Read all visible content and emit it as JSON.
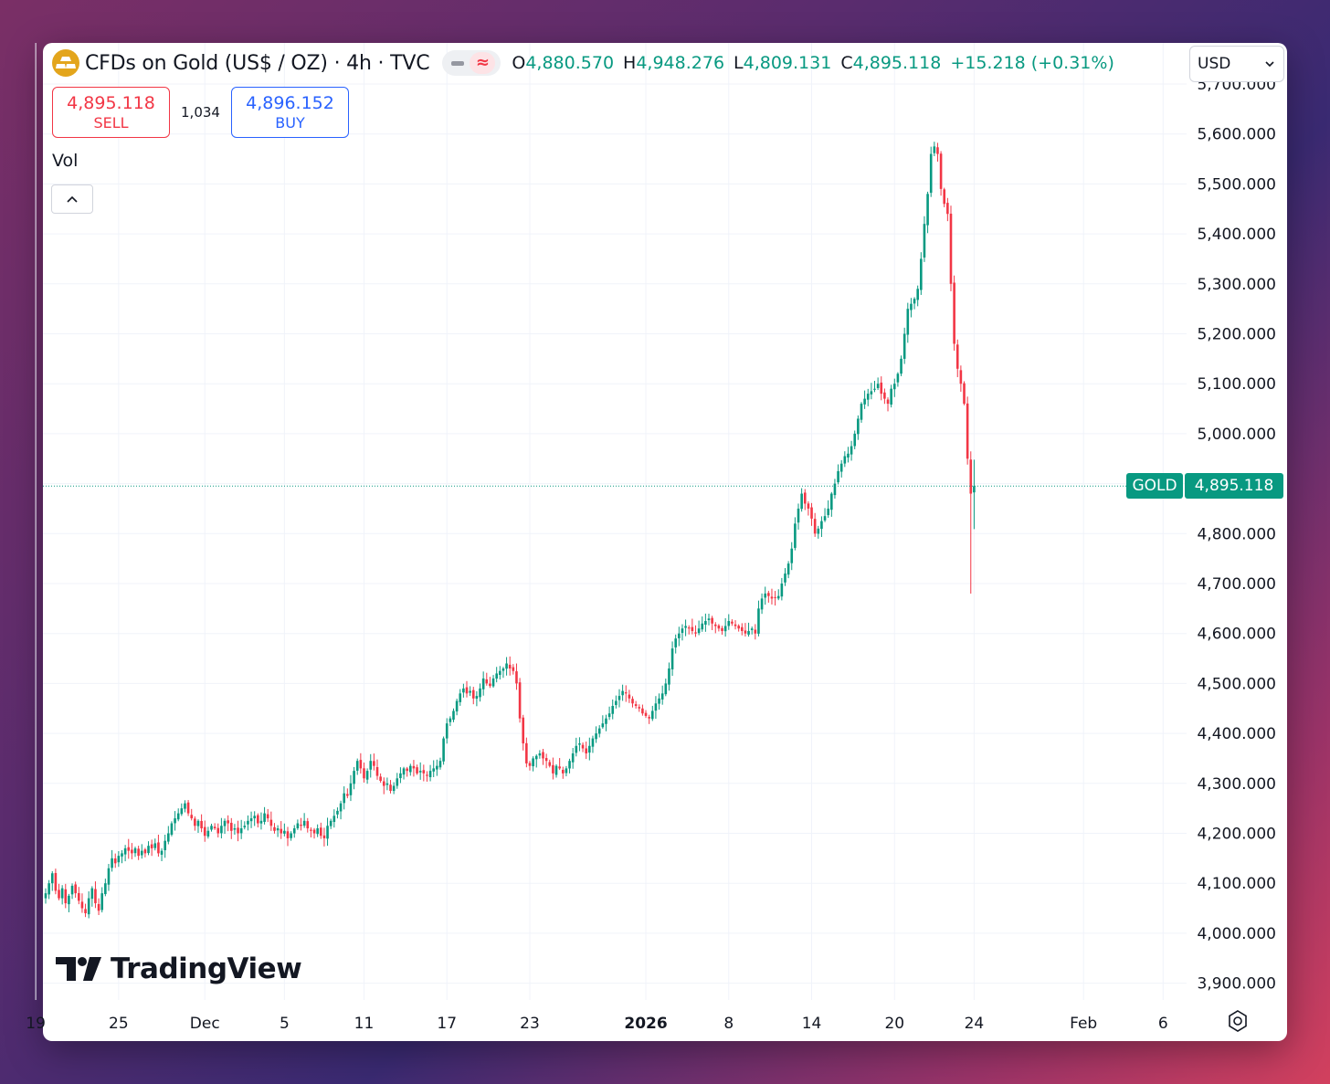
{
  "header": {
    "symbol_title": "CFDs on Gold (US$ / OZ) · 4h · TVC",
    "ohlc": {
      "open_label": "O",
      "open": "4,880.570",
      "high_label": "H",
      "high": "4,948.276",
      "low_label": "L",
      "low": "4,809.131",
      "close_label": "C",
      "close": "4,895.118",
      "change": "+15.218 (+0.31%)"
    },
    "currency": "USD"
  },
  "trade": {
    "sell_price": "4,895.118",
    "sell_label": "SELL",
    "spread": "1,034",
    "buy_price": "4,896.152",
    "buy_label": "BUY"
  },
  "indicator": {
    "vol_label": "Vol"
  },
  "watermark": {
    "text": "TradingView"
  },
  "last_price_tag": {
    "name": "GOLD",
    "price": "4,895.118"
  },
  "colors": {
    "up": "#089981",
    "down": "#f23645",
    "grid": "#f0f3fa",
    "text": "#131722",
    "gold_icon": "#e3a51c"
  },
  "chart_data": {
    "type": "candlestick",
    "symbol": "GOLD",
    "timeframe": "4h",
    "ylim": [
      3850,
      5700
    ],
    "y_ticks": [
      3900,
      4000,
      4100,
      4200,
      4300,
      4400,
      4500,
      4600,
      4700,
      4800,
      4900,
      5000,
      5100,
      5200,
      5300,
      5400,
      5500,
      5600,
      5700
    ],
    "y_tick_labels": [
      "3,900.000",
      "4,000.000",
      "4,100.000",
      "4,200.000",
      "4,300.000",
      "4,400.000",
      "4,500.000",
      "4,600.000",
      "4,700.000",
      "4,800.000",
      "",
      "5,000.000",
      "5,100.000",
      "5,200.000",
      "5,300.000",
      "5,400.000",
      "5,500.000",
      "5,600.000",
      "5,700.000"
    ],
    "x_ticks": [
      {
        "label": "19",
        "bar": -3
      },
      {
        "label": "25",
        "bar": 22
      },
      {
        "label": "Dec",
        "bar": 48
      },
      {
        "label": "5",
        "bar": 72
      },
      {
        "label": "11",
        "bar": 96
      },
      {
        "label": "17",
        "bar": 121
      },
      {
        "label": "23",
        "bar": 146
      },
      {
        "label": "2026",
        "bar": 181,
        "bold": true
      },
      {
        "label": "8",
        "bar": 206
      },
      {
        "label": "14",
        "bar": 231
      },
      {
        "label": "20",
        "bar": 256
      },
      {
        "label": "24",
        "bar": 280
      },
      {
        "label": "Feb",
        "bar": 313
      },
      {
        "label": "6",
        "bar": 337
      }
    ],
    "last_price": 4895.118,
    "close_series": [
      4080,
      4100,
      4120,
      4085,
      4070,
      4090,
      4060,
      4075,
      4095,
      4080,
      4065,
      4050,
      4040,
      4070,
      4090,
      4060,
      4045,
      4080,
      4100,
      4130,
      4150,
      4140,
      4155,
      4160,
      4170,
      4165,
      4160,
      4170,
      4155,
      4165,
      4160,
      4175,
      4170,
      4180,
      4160,
      4165,
      4185,
      4200,
      4220,
      4230,
      4240,
      4250,
      4260,
      4240,
      4230,
      4215,
      4225,
      4210,
      4195,
      4205,
      4215,
      4210,
      4200,
      4215,
      4225,
      4220,
      4205,
      4210,
      4200,
      4210,
      4215,
      4225,
      4230,
      4235,
      4220,
      4225,
      4240,
      4230,
      4215,
      4205,
      4210,
      4200,
      4205,
      4190,
      4200,
      4210,
      4220,
      4215,
      4225,
      4210,
      4205,
      4200,
      4210,
      4195,
      4190,
      4215,
      4225,
      4235,
      4245,
      4260,
      4280,
      4275,
      4300,
      4325,
      4345,
      4330,
      4310,
      4325,
      4345,
      4335,
      4315,
      4305,
      4295,
      4300,
      4285,
      4295,
      4310,
      4320,
      4330,
      4325,
      4335,
      4330,
      4320,
      4325,
      4320,
      4315,
      4325,
      4330,
      4335,
      4345,
      4390,
      4420,
      4430,
      4445,
      4465,
      4480,
      4490,
      4480,
      4485,
      4470,
      4475,
      4490,
      4510,
      4500,
      4495,
      4510,
      4520,
      4525,
      4530,
      4540,
      4530,
      4525,
      4500,
      4430,
      4380,
      4340,
      4335,
      4350,
      4355,
      4360,
      4350,
      4345,
      4335,
      4320,
      4335,
      4330,
      4320,
      4330,
      4345,
      4360,
      4375,
      4380,
      4370,
      4360,
      4375,
      4390,
      4400,
      4410,
      4420,
      4430,
      4440,
      4455,
      4465,
      4475,
      4485,
      4480,
      4470,
      4460,
      4455,
      4450,
      4440,
      4435,
      4430,
      4445,
      4460,
      4470,
      4480,
      4500,
      4530,
      4570,
      4590,
      4600,
      4610,
      4615,
      4610,
      4605,
      4600,
      4610,
      4620,
      4625,
      4630,
      4620,
      4615,
      4610,
      4605,
      4615,
      4625,
      4620,
      4615,
      4610,
      4605,
      4600,
      4605,
      4610,
      4600,
      4650,
      4670,
      4680,
      4675,
      4670,
      4672,
      4675,
      4700,
      4720,
      4740,
      4770,
      4820,
      4850,
      4880,
      4860,
      4850,
      4830,
      4800,
      4810,
      4825,
      4835,
      4850,
      4880,
      4900,
      4925,
      4940,
      4955,
      4960,
      4975,
      5000,
      5030,
      5060,
      5070,
      5080,
      5085,
      5090,
      5100,
      5080,
      5070,
      5060,
      5090,
      5100,
      5120,
      5150,
      5200,
      5250,
      5260,
      5270,
      5290,
      5350,
      5420,
      5480,
      5560,
      5575,
      5560,
      5490,
      5460,
      5440,
      5300,
      5180,
      5130,
      5100,
      5060,
      4950,
      4880,
      4895
    ]
  }
}
